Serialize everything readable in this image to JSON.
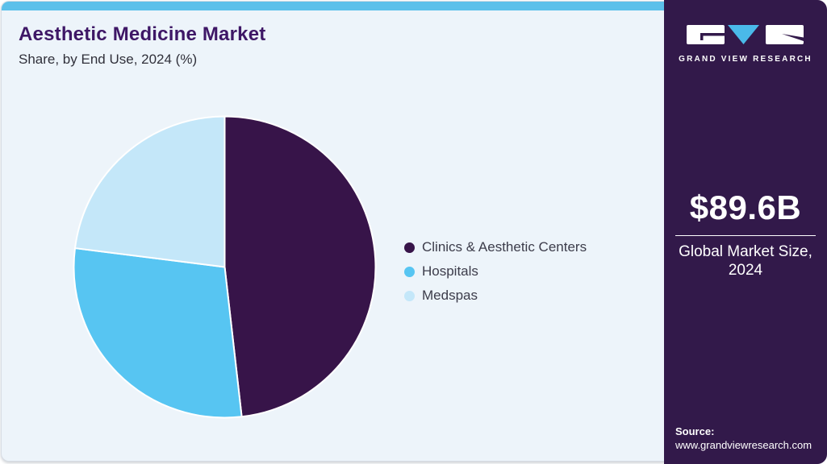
{
  "header": {
    "title": "Aesthetic Medicine Market",
    "subtitle": "Share, by End Use, 2024 (%)"
  },
  "chart_data": {
    "type": "pie",
    "title": "Aesthetic Medicine Market Share, by End Use, 2024 (%)",
    "categories": [
      "Clinics & Aesthetic Centers",
      "Hospitals",
      "Medspas"
    ],
    "values": [
      48.2,
      28.8,
      23.0
    ],
    "unit": "%",
    "colors": [
      "#371449",
      "#57c5f2",
      "#c4e7f9"
    ],
    "slice_border_color": "#ffffff",
    "start_angle_deg": 0,
    "direction": "clockwise",
    "legend_position": "right"
  },
  "sidebar": {
    "brand_name": "GRAND VIEW RESEARCH",
    "market_size_value": "$89.6B",
    "market_size_label_line1": "Global Market Size,",
    "market_size_label_line2": "2024",
    "source_label": "Source:",
    "source_url": "www.grandviewresearch.com"
  },
  "colors": {
    "accent_bar": "#5cc0ea",
    "panel_background": "#edf4fa",
    "sidebar_background": "#32194a",
    "title_text": "#3e1766",
    "logo_triangle": "#4ab9e9"
  }
}
